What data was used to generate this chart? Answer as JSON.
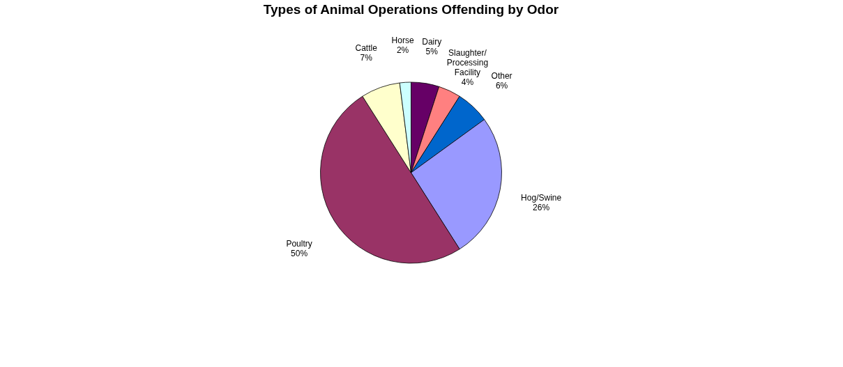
{
  "chart_data": {
    "type": "pie",
    "title": "Types of Animal Operations Offending by Odor",
    "categories": [
      "Dairy",
      "Slaughter/Processing Facility",
      "Other",
      "Hog/Swine",
      "Poultry",
      "Cattle",
      "Horse"
    ],
    "values": [
      5,
      4,
      6,
      26,
      50,
      7,
      2
    ],
    "value_labels": [
      "5%",
      "4%",
      "6%",
      "26%",
      "50%",
      "7%",
      "2%"
    ],
    "colors": [
      "#660066",
      "#ff8080",
      "#0066cc",
      "#9999ff",
      "#993366",
      "#ffffcc",
      "#ccffff"
    ],
    "legend": false
  }
}
